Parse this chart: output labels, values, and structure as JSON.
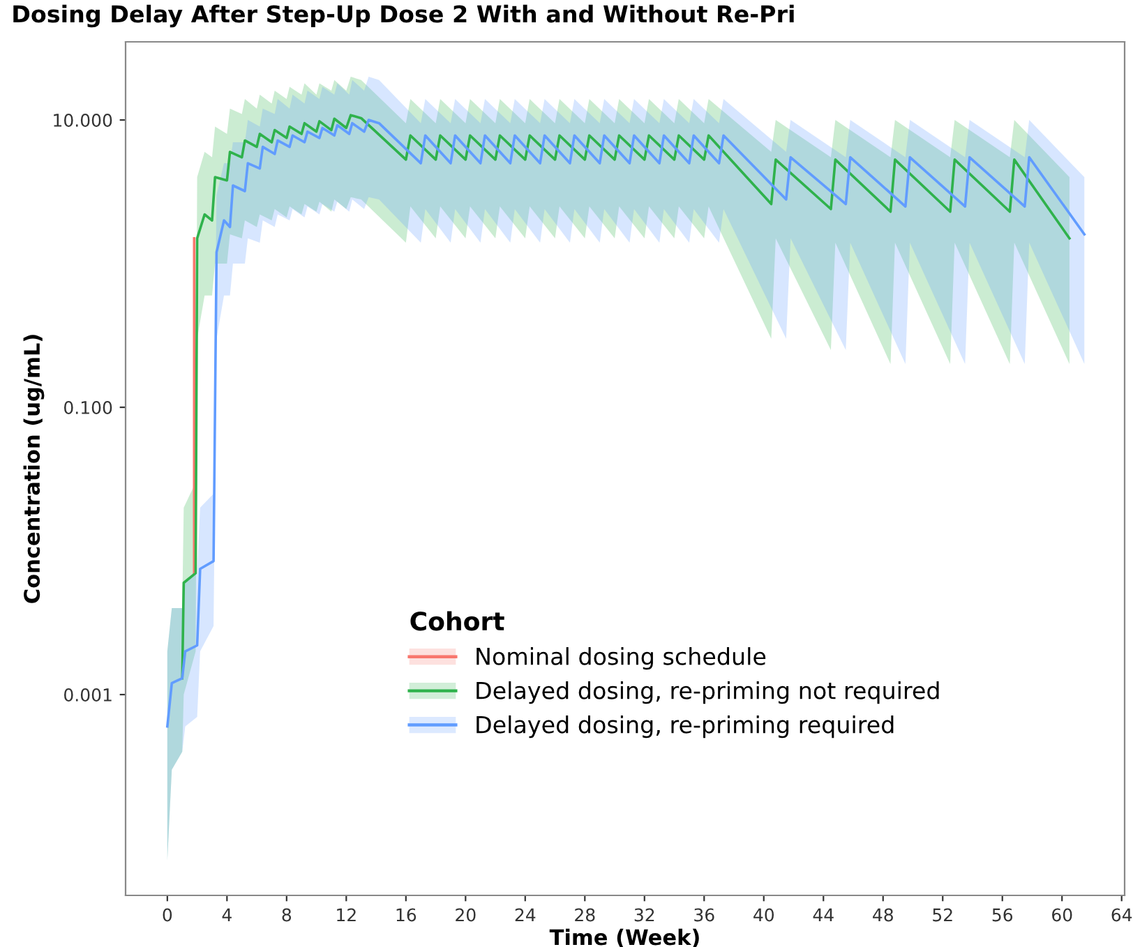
{
  "chart_data": {
    "type": "line",
    "title": "Dosing Delay After Step-Up Dose 2 With and Without Re-Pri",
    "xlabel": "Time (Week)",
    "ylabel": "Concentration (ug/mL)",
    "legend_title": "Cohort",
    "legend": "bottom",
    "grid": false,
    "log": "y",
    "xlim": [
      -2.8,
      64.2
    ],
    "xticks": [
      0,
      4,
      8,
      12,
      16,
      20,
      24,
      28,
      32,
      36,
      40,
      44,
      48,
      52,
      56,
      60,
      64
    ],
    "ylim": [
      4e-05,
      35
    ],
    "yticks": [
      {
        "value": 0.001,
        "label": "0.001"
      },
      {
        "value": 0.1,
        "label": "0.100"
      },
      {
        "value": 10,
        "label": "10.000"
      }
    ],
    "series": [
      {
        "name": "Nominal dosing schedule",
        "color": "#f8766d",
        "x": [
          1.8,
          1.8
        ],
        "values": [
          0.007,
          1.5
        ]
      },
      {
        "name": "Delayed dosing, re-priming not required",
        "color": "#2fb24c",
        "x": [
          0,
          0.3,
          1.0,
          1.1,
          1.9,
          2.0,
          2.5,
          3.0,
          3.2,
          4.0,
          4.2,
          5.0,
          5.2,
          6.0,
          6.2,
          7.0,
          7.2,
          8.0,
          8.2,
          9.0,
          9.2,
          10.0,
          10.2,
          11.0,
          11.2,
          12.0,
          12.3,
          13.0,
          16.0,
          16.3,
          18.0,
          18.3,
          20.0,
          20.3,
          22.0,
          22.3,
          24.0,
          24.3,
          26.0,
          26.3,
          28.0,
          28.3,
          30.0,
          30.3,
          32.0,
          32.3,
          34.0,
          34.3,
          36.0,
          36.3,
          40.5,
          40.8,
          44.5,
          44.8,
          48.5,
          48.8,
          52.5,
          52.8,
          56.5,
          56.8,
          60.5
        ],
        "values": [
          null,
          null,
          0.0013,
          0.006,
          0.007,
          1.5,
          2.2,
          2.0,
          4.0,
          3.8,
          6.0,
          5.5,
          7.2,
          6.5,
          8.0,
          7.0,
          8.5,
          7.5,
          9.0,
          8.0,
          9.5,
          8.3,
          9.8,
          8.5,
          10.2,
          8.8,
          10.8,
          10.3,
          5.3,
          7.8,
          5.3,
          7.8,
          5.3,
          7.8,
          5.3,
          7.8,
          5.3,
          7.8,
          5.3,
          7.8,
          5.3,
          7.8,
          5.3,
          7.8,
          5.3,
          7.8,
          5.3,
          7.8,
          5.3,
          7.8,
          2.6,
          5.3,
          2.4,
          5.3,
          2.3,
          5.3,
          2.3,
          5.3,
          2.3,
          5.3,
          1.5
        ],
        "lower": [
          7e-05,
          0.0003,
          0.0004,
          0.001,
          0.002,
          0.3,
          0.6,
          0.6,
          1.0,
          1.0,
          1.6,
          1.5,
          2.0,
          1.8,
          2.2,
          2.0,
          2.4,
          2.1,
          2.5,
          2.2,
          2.6,
          2.3,
          2.7,
          2.3,
          2.8,
          2.4,
          2.9,
          2.8,
          1.4,
          2.5,
          1.5,
          2.5,
          1.5,
          2.5,
          1.5,
          2.5,
          1.5,
          2.5,
          1.5,
          2.5,
          1.5,
          2.5,
          1.5,
          2.5,
          1.5,
          2.5,
          1.5,
          2.5,
          1.5,
          2.5,
          0.3,
          1.5,
          0.25,
          1.4,
          0.2,
          1.4,
          0.2,
          1.4,
          0.2,
          1.4,
          0.2
        ],
        "upper": [
          0.002,
          0.004,
          0.004,
          0.02,
          0.03,
          4,
          6,
          5.5,
          9,
          8,
          12,
          11,
          14,
          12,
          15,
          13,
          16,
          14,
          17,
          15,
          18,
          15,
          18,
          16,
          19,
          16,
          20,
          19,
          9.5,
          14,
          9.5,
          14,
          9.5,
          14,
          9.5,
          14,
          9.5,
          14,
          9.5,
          14,
          9.5,
          14,
          9.5,
          14,
          9.5,
          14,
          9.5,
          14,
          9.5,
          14,
          6,
          10,
          5.5,
          10,
          5.5,
          10,
          5.5,
          10,
          5.5,
          10,
          4
        ]
      },
      {
        "name": "Delayed dosing, re-priming required",
        "color": "#619cff",
        "x": [
          0,
          0.3,
          1.0,
          1.2,
          2.0,
          2.2,
          3.1,
          3.3,
          3.8,
          4.2,
          4.4,
          5.2,
          5.4,
          6.2,
          6.4,
          7.2,
          7.4,
          8.2,
          8.4,
          9.2,
          9.4,
          10.2,
          10.4,
          11.2,
          11.4,
          12.2,
          12.4,
          13.2,
          13.5,
          14.2,
          17.0,
          17.3,
          19.0,
          19.3,
          21.0,
          21.3,
          23.0,
          23.3,
          25.0,
          25.3,
          27.0,
          27.3,
          29.0,
          29.3,
          31.0,
          31.3,
          33.0,
          33.3,
          35.0,
          35.3,
          37.0,
          37.3,
          41.5,
          41.8,
          45.5,
          45.8,
          49.5,
          49.8,
          53.5,
          53.8,
          57.5,
          57.8,
          61.5
        ],
        "values": [
          0.0006,
          0.0012,
          0.0013,
          0.002,
          0.0022,
          0.0075,
          0.0085,
          1.2,
          2.0,
          1.8,
          3.5,
          3.2,
          5.0,
          4.6,
          6.5,
          5.8,
          7.2,
          6.5,
          7.8,
          7.0,
          8.3,
          7.5,
          8.8,
          7.8,
          9.2,
          8.0,
          9.5,
          8.3,
          10.0,
          9.5,
          5.0,
          7.8,
          5.0,
          7.8,
          5.0,
          7.8,
          5.0,
          7.8,
          5.0,
          7.8,
          5.0,
          7.8,
          5.0,
          7.8,
          5.0,
          7.8,
          5.0,
          7.8,
          5.0,
          7.8,
          5.0,
          7.8,
          2.8,
          5.5,
          2.6,
          5.5,
          2.5,
          5.5,
          2.5,
          5.5,
          2.5,
          5.5,
          1.6
        ],
        "lower": [
          7e-05,
          0.0003,
          0.0004,
          0.0006,
          0.0007,
          0.002,
          0.003,
          0.3,
          0.6,
          0.6,
          1.0,
          1.0,
          1.5,
          1.4,
          2.0,
          1.8,
          2.2,
          2.0,
          2.4,
          2.1,
          2.5,
          2.2,
          2.6,
          2.3,
          2.7,
          2.3,
          2.8,
          2.4,
          2.9,
          2.8,
          1.4,
          2.4,
          1.4,
          2.4,
          1.4,
          2.4,
          1.4,
          2.4,
          1.4,
          2.4,
          1.4,
          2.4,
          1.4,
          2.4,
          1.4,
          2.4,
          1.4,
          2.4,
          1.4,
          2.4,
          1.4,
          2.4,
          0.3,
          1.5,
          0.25,
          1.4,
          0.2,
          1.4,
          0.2,
          1.4,
          0.2,
          1.4,
          0.2
        ],
        "upper": [
          0.002,
          0.004,
          0.004,
          0.006,
          0.007,
          0.02,
          0.025,
          3,
          5,
          5,
          7,
          7,
          10,
          9,
          12,
          11,
          14,
          12,
          15,
          13,
          16,
          14,
          17,
          15,
          18,
          15,
          19,
          16,
          20,
          19,
          9.5,
          14,
          9.5,
          14,
          9.5,
          14,
          9.5,
          14,
          9.5,
          14,
          9.5,
          14,
          9.5,
          14,
          9.5,
          14,
          9.5,
          14,
          9.5,
          14,
          9.5,
          14,
          6,
          10,
          5.5,
          10,
          5.5,
          10,
          5.5,
          10,
          5.5,
          10,
          4
        ]
      }
    ]
  }
}
